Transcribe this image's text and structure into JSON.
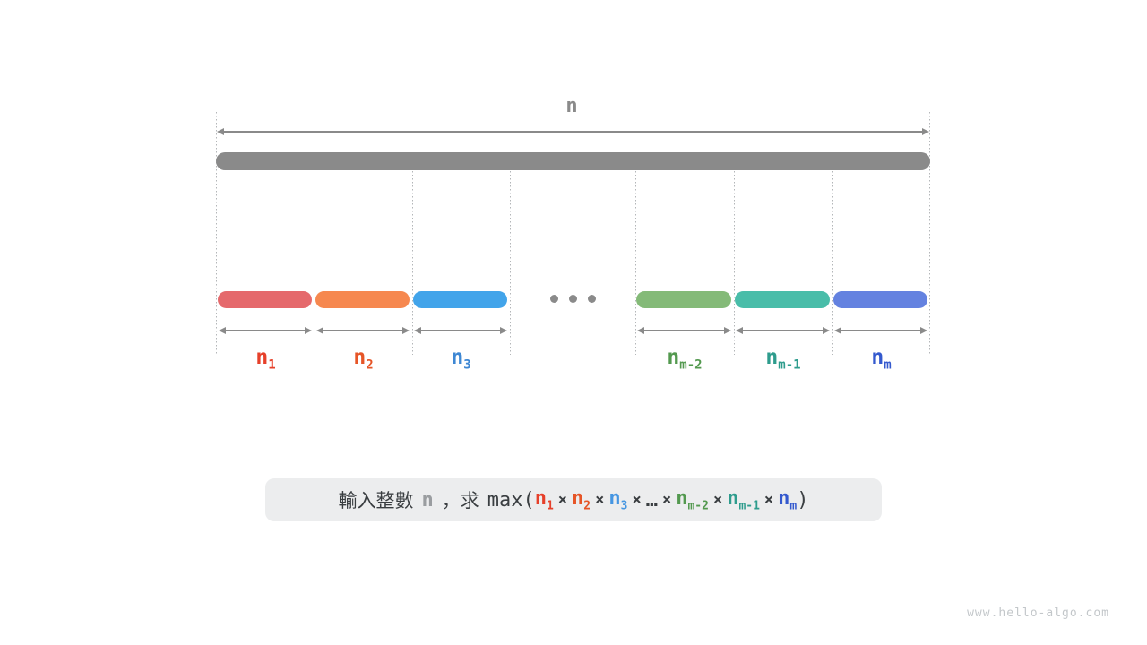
{
  "diagram": {
    "total_label": "n",
    "gray_color": "#8a8a8a",
    "dotted_color": "#b3b6b8",
    "segments": [
      {
        "base": "n",
        "sub": "1",
        "bar_color": "#e5696c",
        "label_color": "#e6402a"
      },
      {
        "base": "n",
        "sub": "2",
        "bar_color": "#f6884f",
        "label_color": "#e65527"
      },
      {
        "base": "n",
        "sub": "3",
        "bar_color": "#42a4ea",
        "label_color": "#3e87d3"
      },
      {
        "base": "n",
        "sub": "m-2",
        "bar_color": "#84ba78",
        "label_color": "#53994f"
      },
      {
        "base": "n",
        "sub": "m-1",
        "bar_color": "#49bda9",
        "label_color": "#2e9c8d"
      },
      {
        "base": "n",
        "sub": "m",
        "bar_color": "#6482e0",
        "label_color": "#3459ce"
      }
    ]
  },
  "formula": {
    "box_bg": "#ecedee",
    "text_color": "#3a3e41",
    "label_cjk": "輸入整數",
    "var": "n",
    "var_color": "#9a9da0",
    "mid_cjk": "，求",
    "func": "max(",
    "times": "×",
    "close": ")",
    "terms": [
      {
        "base": "n",
        "sub": "1",
        "color": "#e6402a"
      },
      {
        "base": "n",
        "sub": "2",
        "color": "#e65527"
      },
      {
        "base": "n",
        "sub": "3",
        "color": "#4596e2"
      },
      {
        "base": "…",
        "sub": "",
        "color": "#3a3e41"
      },
      {
        "base": "n",
        "sub": "m-2",
        "color": "#53994f"
      },
      {
        "base": "n",
        "sub": "m-1",
        "color": "#2e9c8d"
      },
      {
        "base": "n",
        "sub": "m",
        "color": "#3459ce"
      }
    ]
  },
  "watermark": "www.hello-algo.com"
}
